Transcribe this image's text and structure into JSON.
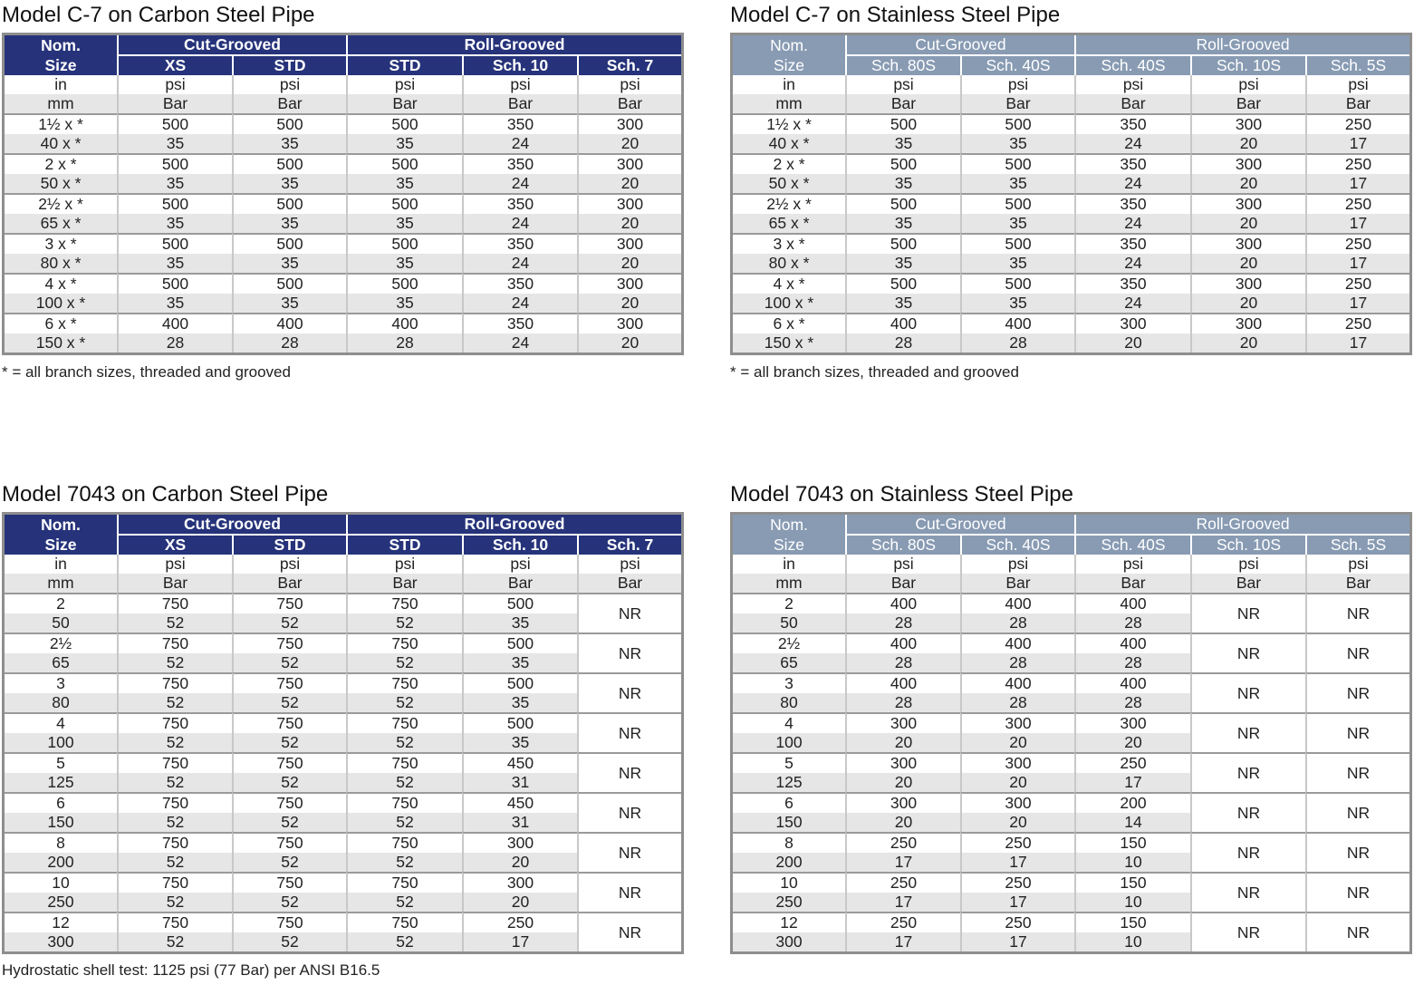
{
  "panels": [
    {
      "title": "Model C-7 on Carbon Steel Pipe",
      "style": "carbon",
      "header": {
        "nom_line1": "Nom.",
        "nom_line2": "Size",
        "group1": "Cut-Grooved",
        "group2": "Roll-Grooved",
        "columns": [
          "XS",
          "STD",
          "STD",
          "Sch. 10",
          "Sch. 7"
        ]
      },
      "units": {
        "row1": [
          "in",
          "psi",
          "psi",
          "psi",
          "psi",
          "psi"
        ],
        "row2": [
          "mm",
          "Bar",
          "Bar",
          "Bar",
          "Bar",
          "Bar"
        ]
      },
      "rows": [
        {
          "in": [
            "1½ x *",
            "500",
            "500",
            "500",
            "350",
            "300"
          ],
          "mm": [
            "40 x *",
            "35",
            "35",
            "35",
            "24",
            "20"
          ]
        },
        {
          "in": [
            "2 x *",
            "500",
            "500",
            "500",
            "350",
            "300"
          ],
          "mm": [
            "50 x *",
            "35",
            "35",
            "35",
            "24",
            "20"
          ]
        },
        {
          "in": [
            "2½ x *",
            "500",
            "500",
            "500",
            "350",
            "300"
          ],
          "mm": [
            "65 x *",
            "35",
            "35",
            "35",
            "24",
            "20"
          ]
        },
        {
          "in": [
            "3 x *",
            "500",
            "500",
            "500",
            "350",
            "300"
          ],
          "mm": [
            "80 x *",
            "35",
            "35",
            "35",
            "24",
            "20"
          ]
        },
        {
          "in": [
            "4 x *",
            "500",
            "500",
            "500",
            "350",
            "300"
          ],
          "mm": [
            "100 x *",
            "35",
            "35",
            "35",
            "24",
            "20"
          ]
        },
        {
          "in": [
            "6 x *",
            "400",
            "400",
            "400",
            "350",
            "300"
          ],
          "mm": [
            "150 x *",
            "28",
            "28",
            "28",
            "24",
            "20"
          ]
        }
      ],
      "note": "* = all branch sizes, threaded and grooved"
    },
    {
      "title": "Model C-7 on Stainless Steel Pipe",
      "style": "stainless",
      "header": {
        "nom_line1": "Nom.",
        "nom_line2": "Size",
        "group1": "Cut-Grooved",
        "group2": "Roll-Grooved",
        "columns": [
          "Sch. 80S",
          "Sch. 40S",
          "Sch. 40S",
          "Sch. 10S",
          "Sch. 5S"
        ]
      },
      "units": {
        "row1": [
          "in",
          "psi",
          "psi",
          "psi",
          "psi",
          "psi"
        ],
        "row2": [
          "mm",
          "Bar",
          "Bar",
          "Bar",
          "Bar",
          "Bar"
        ]
      },
      "rows": [
        {
          "in": [
            "1½ x *",
            "500",
            "500",
            "350",
            "300",
            "250"
          ],
          "mm": [
            "40 x *",
            "35",
            "35",
            "24",
            "20",
            "17"
          ]
        },
        {
          "in": [
            "2 x *",
            "500",
            "500",
            "350",
            "300",
            "250"
          ],
          "mm": [
            "50 x *",
            "35",
            "35",
            "24",
            "20",
            "17"
          ]
        },
        {
          "in": [
            "2½ x *",
            "500",
            "500",
            "350",
            "300",
            "250"
          ],
          "mm": [
            "65 x *",
            "35",
            "35",
            "24",
            "20",
            "17"
          ]
        },
        {
          "in": [
            "3 x *",
            "500",
            "500",
            "350",
            "300",
            "250"
          ],
          "mm": [
            "80 x *",
            "35",
            "35",
            "24",
            "20",
            "17"
          ]
        },
        {
          "in": [
            "4 x *",
            "500",
            "500",
            "350",
            "300",
            "250"
          ],
          "mm": [
            "100 x *",
            "35",
            "35",
            "24",
            "20",
            "17"
          ]
        },
        {
          "in": [
            "6 x *",
            "400",
            "400",
            "300",
            "300",
            "250"
          ],
          "mm": [
            "150 x *",
            "28",
            "28",
            "20",
            "20",
            "17"
          ]
        }
      ],
      "note": "* = all branch sizes, threaded and grooved"
    },
    {
      "title": "Model 7043 on Carbon Steel Pipe",
      "style": "carbon",
      "header": {
        "nom_line1": "Nom.",
        "nom_line2": "Size",
        "group1": "Cut-Grooved",
        "group2": "Roll-Grooved",
        "columns": [
          "XS",
          "STD",
          "STD",
          "Sch. 10",
          "Sch. 7"
        ]
      },
      "units": {
        "row1": [
          "in",
          "psi",
          "psi",
          "psi",
          "psi",
          "psi"
        ],
        "row2": [
          "mm",
          "Bar",
          "Bar",
          "Bar",
          "Bar",
          "Bar"
        ]
      },
      "nr_cols": 1,
      "rows": [
        {
          "in": [
            "2",
            "750",
            "750",
            "750",
            "500"
          ],
          "mm": [
            "50",
            "52",
            "52",
            "52",
            "35"
          ],
          "nr": [
            "NR"
          ]
        },
        {
          "in": [
            "2½",
            "750",
            "750",
            "750",
            "500"
          ],
          "mm": [
            "65",
            "52",
            "52",
            "52",
            "35"
          ],
          "nr": [
            "NR"
          ]
        },
        {
          "in": [
            "3",
            "750",
            "750",
            "750",
            "500"
          ],
          "mm": [
            "80",
            "52",
            "52",
            "52",
            "35"
          ],
          "nr": [
            "NR"
          ]
        },
        {
          "in": [
            "4",
            "750",
            "750",
            "750",
            "500"
          ],
          "mm": [
            "100",
            "52",
            "52",
            "52",
            "35"
          ],
          "nr": [
            "NR"
          ]
        },
        {
          "in": [
            "5",
            "750",
            "750",
            "750",
            "450"
          ],
          "mm": [
            "125",
            "52",
            "52",
            "52",
            "31"
          ],
          "nr": [
            "NR"
          ]
        },
        {
          "in": [
            "6",
            "750",
            "750",
            "750",
            "450"
          ],
          "mm": [
            "150",
            "52",
            "52",
            "52",
            "31"
          ],
          "nr": [
            "NR"
          ]
        },
        {
          "in": [
            "8",
            "750",
            "750",
            "750",
            "300"
          ],
          "mm": [
            "200",
            "52",
            "52",
            "52",
            "20"
          ],
          "nr": [
            "NR"
          ]
        },
        {
          "in": [
            "10",
            "750",
            "750",
            "750",
            "300"
          ],
          "mm": [
            "250",
            "52",
            "52",
            "52",
            "20"
          ],
          "nr": [
            "NR"
          ]
        },
        {
          "in": [
            "12",
            "750",
            "750",
            "750",
            "250"
          ],
          "mm": [
            "300",
            "52",
            "52",
            "52",
            "17"
          ],
          "nr": [
            "NR"
          ]
        }
      ],
      "note": "Hydrostatic shell test: 1125 psi (77 Bar) per ANSI B16.5"
    },
    {
      "title": "Model 7043 on Stainless Steel Pipe",
      "style": "stainless",
      "header": {
        "nom_line1": "Nom.",
        "nom_line2": "Size",
        "group1": "Cut-Grooved",
        "group2": "Roll-Grooved",
        "columns": [
          "Sch. 80S",
          "Sch. 40S",
          "Sch. 40S",
          "Sch. 10S",
          "Sch. 5S"
        ]
      },
      "units": {
        "row1": [
          "in",
          "psi",
          "psi",
          "psi",
          "psi",
          "psi"
        ],
        "row2": [
          "mm",
          "Bar",
          "Bar",
          "Bar",
          "Bar",
          "Bar"
        ]
      },
      "nr_cols": 2,
      "rows": [
        {
          "in": [
            "2",
            "400",
            "400",
            "400"
          ],
          "mm": [
            "50",
            "28",
            "28",
            "28"
          ],
          "nr": [
            "NR",
            "NR"
          ]
        },
        {
          "in": [
            "2½",
            "400",
            "400",
            "400"
          ],
          "mm": [
            "65",
            "28",
            "28",
            "28"
          ],
          "nr": [
            "NR",
            "NR"
          ]
        },
        {
          "in": [
            "3",
            "400",
            "400",
            "400"
          ],
          "mm": [
            "80",
            "28",
            "28",
            "28"
          ],
          "nr": [
            "NR",
            "NR"
          ]
        },
        {
          "in": [
            "4",
            "300",
            "300",
            "300"
          ],
          "mm": [
            "100",
            "20",
            "20",
            "20"
          ],
          "nr": [
            "NR",
            "NR"
          ]
        },
        {
          "in": [
            "5",
            "300",
            "300",
            "250"
          ],
          "mm": [
            "125",
            "20",
            "20",
            "17"
          ],
          "nr": [
            "NR",
            "NR"
          ]
        },
        {
          "in": [
            "6",
            "300",
            "300",
            "200"
          ],
          "mm": [
            "150",
            "20",
            "20",
            "14"
          ],
          "nr": [
            "NR",
            "NR"
          ]
        },
        {
          "in": [
            "8",
            "250",
            "250",
            "150"
          ],
          "mm": [
            "200",
            "17",
            "17",
            "10"
          ],
          "nr": [
            "NR",
            "NR"
          ]
        },
        {
          "in": [
            "10",
            "250",
            "250",
            "150"
          ],
          "mm": [
            "250",
            "17",
            "17",
            "10"
          ],
          "nr": [
            "NR",
            "NR"
          ]
        },
        {
          "in": [
            "12",
            "250",
            "250",
            "150"
          ],
          "mm": [
            "300",
            "17",
            "17",
            "10"
          ],
          "nr": [
            "NR",
            "NR"
          ]
        }
      ],
      "note": ""
    }
  ]
}
